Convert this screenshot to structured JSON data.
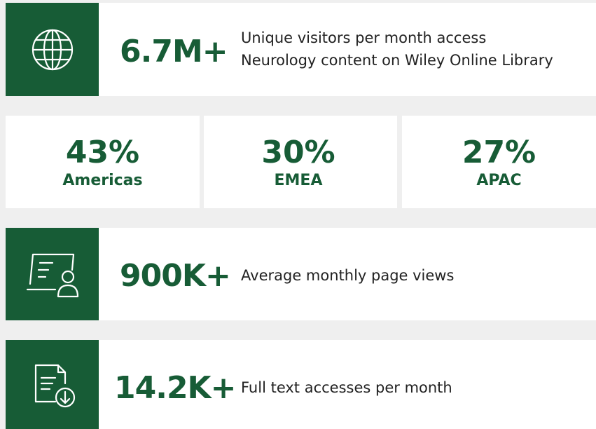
{
  "stats": [
    {
      "value": "6.7M+",
      "lines": [
        "Unique visitors per month access",
        "Neurology content on Wiley Online Library"
      ]
    },
    {
      "value": "900K+",
      "lines": [
        "Average monthly page views"
      ]
    },
    {
      "value": "14.2K+",
      "lines": [
        "Full text accesses per month"
      ]
    }
  ],
  "regions": [
    {
      "value": "43%",
      "name": "Americas"
    },
    {
      "value": "30%",
      "name": "EMEA"
    },
    {
      "value": "27%",
      "name": "APAC"
    }
  ]
}
